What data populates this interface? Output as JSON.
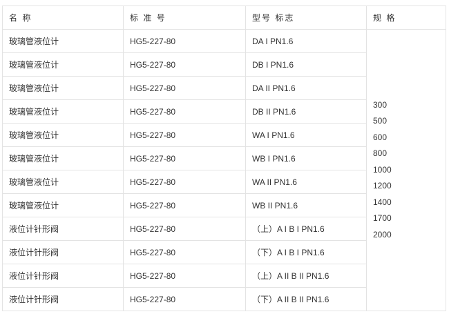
{
  "headers": [
    "名 称",
    "标 准 号",
    "型号 标志",
    "规 格"
  ],
  "rows": [
    {
      "name": "玻璃管液位计",
      "standard": "HG5-227-80",
      "model": "DA I PN1.6"
    },
    {
      "name": "玻璃管液位计",
      "standard": "HG5-227-80",
      "model": "DB I PN1.6"
    },
    {
      "name": "玻璃管液位计",
      "standard": "HG5-227-80",
      "model": "DA II PN1.6"
    },
    {
      "name": "玻璃管液位计",
      "standard": "HG5-227-80",
      "model": "DB II PN1.6"
    },
    {
      "name": "玻璃管液位计",
      "standard": "HG5-227-80",
      "model": "WA I PN1.6"
    },
    {
      "name": "玻璃管液位计",
      "standard": "HG5-227-80",
      "model": "WB I PN1.6"
    },
    {
      "name": "玻璃管液位计",
      "standard": "HG5-227-80",
      "model": "WA II PN1.6"
    },
    {
      "name": "玻璃管液位计",
      "standard": "HG5-227-80",
      "model": "WB II PN1.6"
    },
    {
      "name": "液位计针形阀",
      "standard": "HG5-227-80",
      "model": "（上）A I B I PN1.6"
    },
    {
      "name": "液位计针形阀",
      "standard": "HG5-227-80",
      "model": "（下）A I B I PN1.6"
    },
    {
      "name": "液位计针形阀",
      "standard": "HG5-227-80",
      "model": "（上）A II B II PN1.6"
    },
    {
      "name": "液位计针形阀",
      "standard": "HG5-227-80",
      "model": "（下）A II B II PN1.6"
    }
  ],
  "specs": [
    "300",
    "500",
    "600",
    "800",
    "1000",
    "1200",
    "1400",
    "1700",
    "2000"
  ]
}
